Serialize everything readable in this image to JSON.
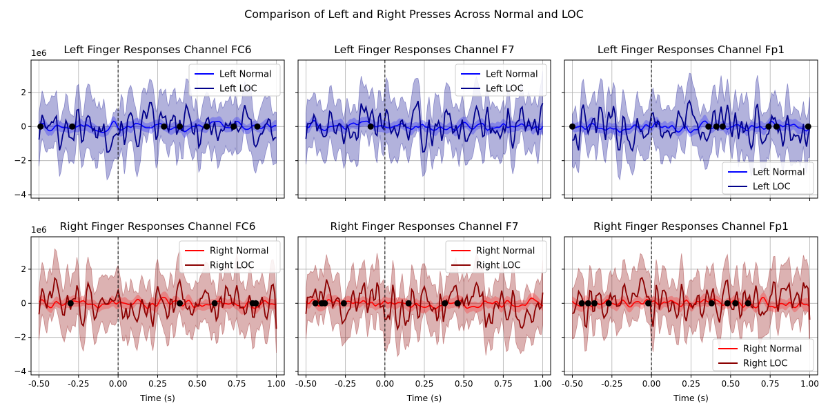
{
  "figure": {
    "suptitle": "Comparison of Left and Right Presses Across Normal and LOC",
    "shared_x_label": "Time (s)",
    "y_offset_label": "1e6"
  },
  "colors": {
    "left_normal": "#0000ff",
    "left_loc": "#00008b",
    "left_band": "#00008b",
    "right_normal": "#ff0000",
    "right_loc": "#8b0000",
    "right_band": "#8b0000",
    "event_dot": "#000000",
    "vline": "#000000",
    "grid": "#b0b0b0"
  },
  "chart_data": [
    {
      "type": "line",
      "title": "Left Finger Responses Channel FC6",
      "xlim": [
        -0.55,
        1.05
      ],
      "ylim": [
        -4.2,
        3.9
      ],
      "xticks": [
        -0.5,
        -0.25,
        0.0,
        0.25,
        0.5,
        0.75,
        1.0
      ],
      "yticks": [
        -4,
        -2,
        0,
        2
      ],
      "xlabel": "",
      "grid": true,
      "legend": "top-right",
      "vline_at": 0.0,
      "series": [
        {
          "name": "Left Normal",
          "role": "normal",
          "values_source": "time_series_approx"
        },
        {
          "name": "Left LOC",
          "role": "loc",
          "values_source": "time_series_approx"
        }
      ],
      "event_x": [
        -0.49,
        -0.29,
        0.29,
        0.39,
        0.56,
        0.73,
        0.88
      ]
    },
    {
      "type": "line",
      "title": "Left Finger Responses Channel F7",
      "xlim": [
        -0.55,
        1.05
      ],
      "ylim": [
        -4.2,
        3.9
      ],
      "xticks": [
        -0.5,
        -0.25,
        0.0,
        0.25,
        0.5,
        0.75,
        1.0
      ],
      "yticks": [
        -4,
        -2,
        0,
        2
      ],
      "xlabel": "",
      "grid": true,
      "legend": "top-right",
      "vline_at": 0.0,
      "series": [
        {
          "name": "Left Normal",
          "role": "normal"
        },
        {
          "name": "Left LOC",
          "role": "loc"
        }
      ],
      "event_x": [
        -0.09
      ]
    },
    {
      "type": "line",
      "title": "Left Finger Responses Channel Fp1",
      "xlim": [
        -0.55,
        1.05
      ],
      "ylim": [
        -4.2,
        3.9
      ],
      "xticks": [
        -0.5,
        -0.25,
        0.0,
        0.25,
        0.5,
        0.75,
        1.0
      ],
      "yticks": [
        -4,
        -2,
        0,
        2
      ],
      "xlabel": "",
      "grid": true,
      "legend": "bottom-right",
      "vline_at": 0.0,
      "series": [
        {
          "name": "Left Normal",
          "role": "normal"
        },
        {
          "name": "Left LOC",
          "role": "loc"
        }
      ],
      "event_x": [
        -0.5,
        0.36,
        0.41,
        0.45,
        0.74,
        0.79,
        0.99
      ]
    },
    {
      "type": "line",
      "title": "Right Finger Responses Channel FC6",
      "xlim": [
        -0.55,
        1.05
      ],
      "ylim": [
        -4.2,
        3.9
      ],
      "xticks": [
        -0.5,
        -0.25,
        0.0,
        0.25,
        0.5,
        0.75,
        1.0
      ],
      "yticks": [
        -4,
        -2,
        0,
        2
      ],
      "xlabel": "Time (s)",
      "grid": true,
      "legend": "top-right",
      "vline_at": 0.0,
      "series": [
        {
          "name": "Right Normal",
          "role": "normal"
        },
        {
          "name": "Right LOC",
          "role": "loc"
        }
      ],
      "event_x": [
        -0.3,
        0.39,
        0.61,
        0.85,
        0.87
      ]
    },
    {
      "type": "line",
      "title": "Right Finger Responses Channel F7",
      "xlim": [
        -0.55,
        1.05
      ],
      "ylim": [
        -4.2,
        3.9
      ],
      "xticks": [
        -0.5,
        -0.25,
        0.0,
        0.25,
        0.5,
        0.75,
        1.0
      ],
      "yticks": [
        -4,
        -2,
        0,
        2
      ],
      "xlabel": "Time (s)",
      "grid": true,
      "legend": "top-right",
      "vline_at": 0.0,
      "series": [
        {
          "name": "Right Normal",
          "role": "normal"
        },
        {
          "name": "Right LOC",
          "role": "loc"
        }
      ],
      "event_x": [
        -0.44,
        -0.4,
        -0.38,
        -0.26,
        0.15,
        0.38,
        0.46
      ]
    },
    {
      "type": "line",
      "title": "Right Finger Responses Channel Fp1",
      "xlim": [
        -0.55,
        1.05
      ],
      "ylim": [
        -4.2,
        3.9
      ],
      "xticks": [
        -0.5,
        -0.25,
        0.0,
        0.25,
        0.5,
        0.75,
        1.0
      ],
      "yticks": [
        -4,
        -2,
        0,
        2
      ],
      "xlabel": "Time (s)",
      "grid": true,
      "legend": "bottom-right",
      "vline_at": 0.0,
      "series": [
        {
          "name": "Right Normal",
          "role": "normal"
        },
        {
          "name": "Right LOC",
          "role": "loc"
        }
      ],
      "event_x": [
        -0.44,
        -0.4,
        -0.36,
        -0.27,
        -0.02,
        0.38,
        0.48,
        0.53,
        0.61
      ]
    }
  ]
}
